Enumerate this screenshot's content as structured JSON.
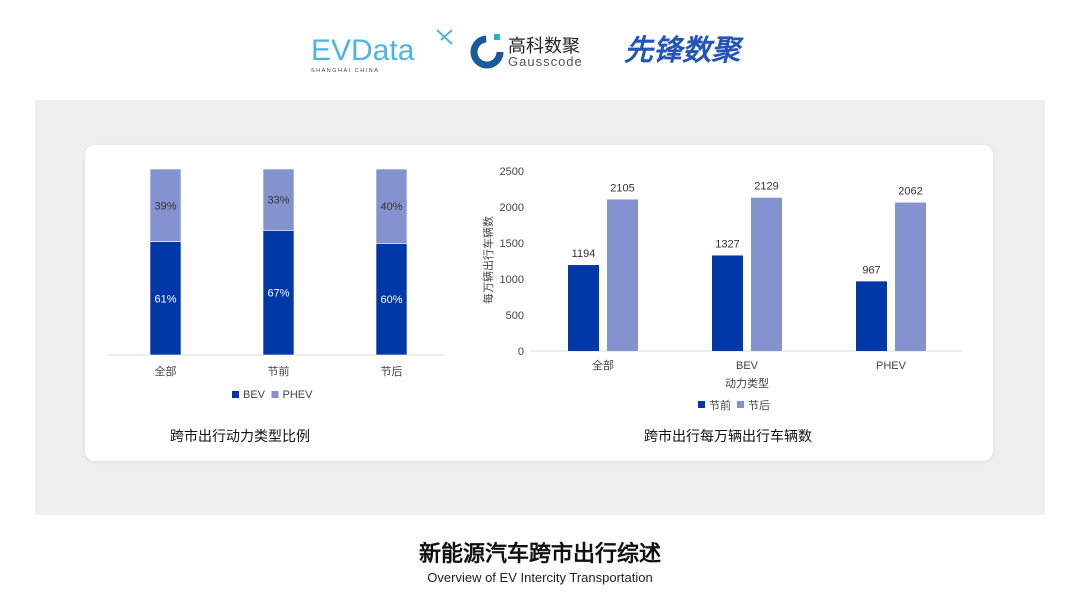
{
  "logos": {
    "evdata": {
      "text": "EVData",
      "sub": "SHANGHAI CHINA"
    },
    "gausscode": {
      "cn": "高科数聚",
      "en": "Gausscode"
    },
    "xianfeng": {
      "text": "先锋数聚"
    }
  },
  "colors": {
    "dark": "#0038a8",
    "light": "#8592d0",
    "panel": "#efefef"
  },
  "chart_data": [
    {
      "type": "bar",
      "stacked": true,
      "percent": true,
      "title": "跨市出行动力类型比例",
      "categories": [
        "全部",
        "节前",
        "节后"
      ],
      "series": [
        {
          "name": "BEV",
          "values": [
            61,
            67,
            60
          ],
          "labels": [
            "61%",
            "67%",
            "60%"
          ],
          "color": "#0038a8"
        },
        {
          "name": "PHEV",
          "values": [
            39,
            33,
            40
          ],
          "labels": [
            "39%",
            "33%",
            "40%"
          ],
          "color": "#8592d0"
        }
      ],
      "legend": "bottom"
    },
    {
      "type": "bar",
      "title": "跨市出行每万辆出行车辆数",
      "xlabel": "动力类型",
      "ylabel": "每万辆出行车辆数",
      "ylim": [
        0,
        2500
      ],
      "yticks": [
        "0",
        "500",
        "1000",
        "1500",
        "2000",
        "2500"
      ],
      "categories": [
        "全部",
        "BEV",
        "PHEV"
      ],
      "series": [
        {
          "name": "节前",
          "values": [
            1194,
            1327,
            967
          ],
          "color": "#0038a8"
        },
        {
          "name": "节后",
          "values": [
            2105,
            2129,
            2062
          ],
          "color": "#8592d0"
        }
      ],
      "legend": "bottom",
      "grid": false
    }
  ],
  "footer": {
    "title": "新能源汽车跨市出行综述",
    "subtitle": "Overview of EV Intercity Transportation"
  }
}
